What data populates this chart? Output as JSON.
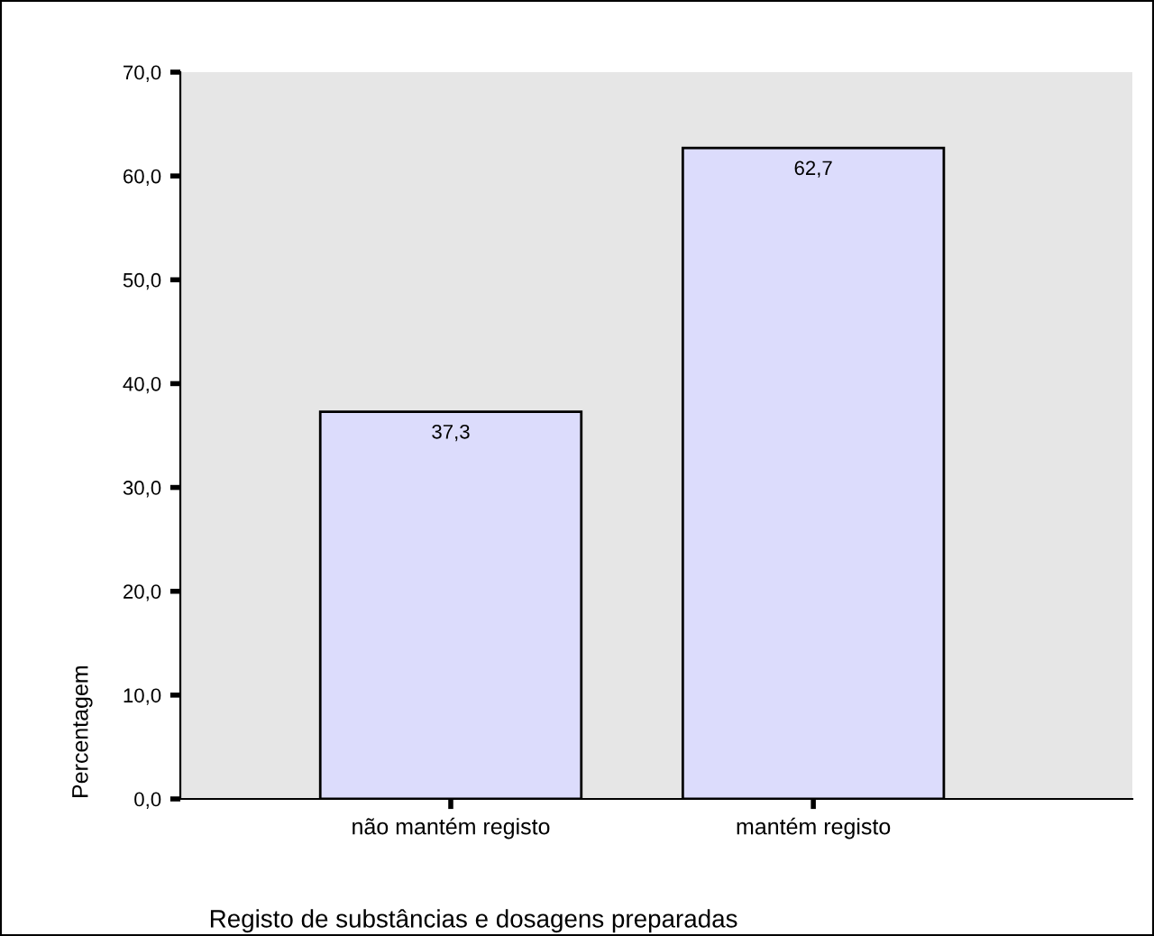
{
  "chart_data": {
    "type": "bar",
    "categories": [
      "não mantém registo",
      "mantém registo"
    ],
    "values": [
      37.3,
      62.7
    ],
    "value_labels": [
      "37,3",
      "62,7"
    ],
    "color": "#dcdcfc",
    "xlabel": "Registo de substâncias e dosagens preparadas",
    "ylabel": "Percentagem",
    "ylim": [
      0,
      70
    ],
    "yticks": [
      {
        "value": 0,
        "label": "0,0"
      },
      {
        "value": 10,
        "label": "10,0"
      },
      {
        "value": 20,
        "label": "20,0"
      },
      {
        "value": 30,
        "label": "30,0"
      },
      {
        "value": 40,
        "label": "40,0"
      },
      {
        "value": 50,
        "label": "50,0"
      },
      {
        "value": 60,
        "label": "60,0"
      },
      {
        "value": 70,
        "label": "70,0"
      }
    ],
    "grid": false
  }
}
